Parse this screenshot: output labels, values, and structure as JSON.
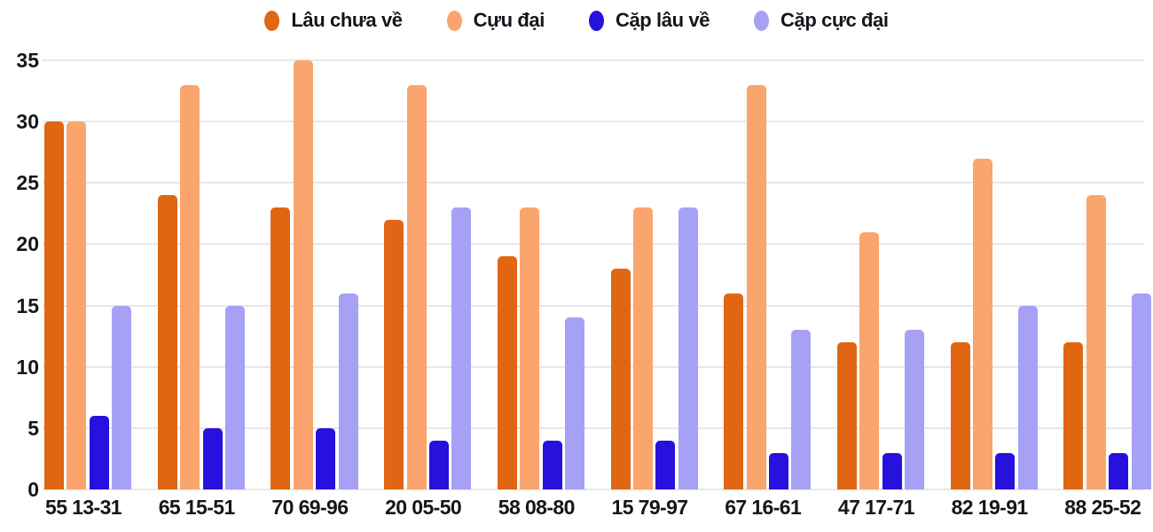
{
  "chart_data": {
    "type": "bar",
    "title": "",
    "xlabel": "",
    "ylabel": "",
    "categories": [
      "55 13-31",
      "65 15-51",
      "70 69-96",
      "20 05-50",
      "58 08-80",
      "15 79-97",
      "67 16-61",
      "47 17-71",
      "82 19-91",
      "88 25-52"
    ],
    "series": [
      {
        "name": "Lâu chưa về",
        "color": "#E06614",
        "values": [
          30,
          24,
          23,
          22,
          19,
          18,
          16,
          12,
          12,
          12
        ]
      },
      {
        "name": "Cựu đại",
        "color": "#FAA46E",
        "values": [
          30,
          33,
          35,
          33,
          23,
          23,
          33,
          21,
          27,
          24
        ]
      },
      {
        "name": "Cặp lâu về",
        "color": "#2711DC",
        "values": [
          6,
          5,
          5,
          4,
          4,
          4,
          3,
          3,
          3,
          3
        ]
      },
      {
        "name": "Cặp cực đại",
        "color": "#A6A1F5",
        "values": [
          15,
          15,
          16,
          23,
          14,
          23,
          13,
          13,
          15,
          16
        ]
      }
    ],
    "ylim": [
      0,
      35
    ],
    "yticks": [
      0,
      5,
      10,
      15,
      20,
      25,
      30,
      35
    ],
    "grid": true,
    "legend_position": "top"
  },
  "colors": {
    "background": "#FFFFFF",
    "gridline": "#E7E7E7",
    "text": "#15161C"
  }
}
